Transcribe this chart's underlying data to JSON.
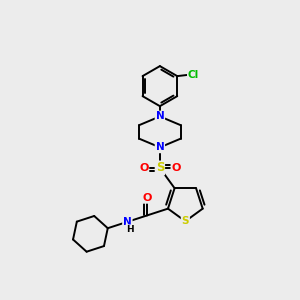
{
  "background_color": "#ececec",
  "bond_color": "#000000",
  "atom_colors": {
    "N": "#0000ff",
    "S_ring": "#cccc00",
    "S_sulfonyl": "#cccc00",
    "O": "#ff0000",
    "Cl": "#00bb00",
    "C": "#000000",
    "H": "#000000"
  },
  "figsize": [
    3.0,
    3.0
  ],
  "dpi": 100
}
